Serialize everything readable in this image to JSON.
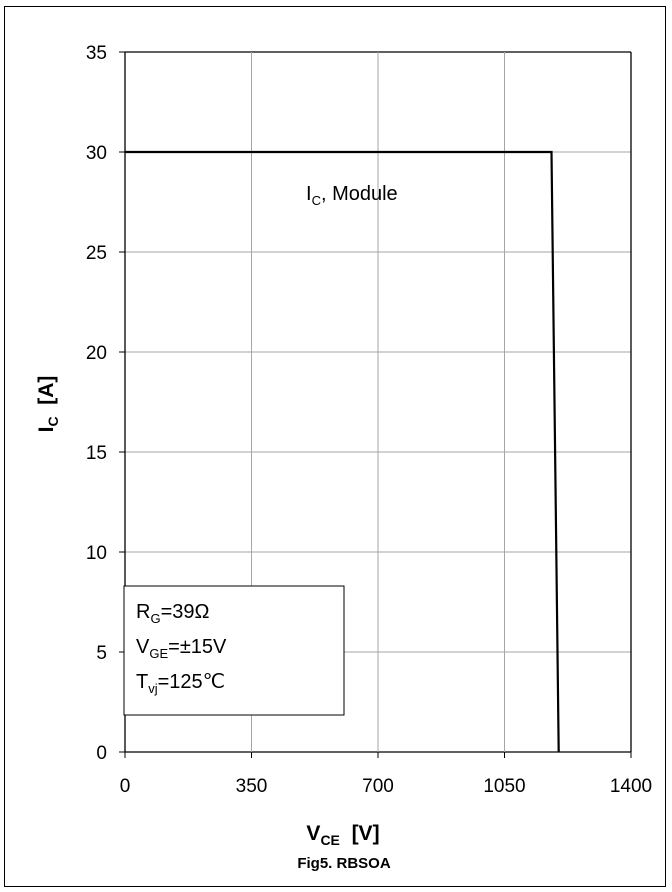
{
  "chart_data": {
    "type": "line",
    "title": "",
    "caption": "Fig5. RBSOA",
    "xlabel": {
      "main": "V",
      "sub": "CE",
      "unit": "[V]"
    },
    "ylabel": {
      "main": "I",
      "sub": "C",
      "unit": "[A]"
    },
    "xlim": [
      0,
      1400
    ],
    "ylim": [
      0,
      35
    ],
    "x_ticks": [
      "0",
      "350",
      "700",
      "1050",
      "1400"
    ],
    "y_ticks": [
      "0",
      "5",
      "10",
      "15",
      "20",
      "25",
      "30",
      "35"
    ],
    "grid": true,
    "series": [
      {
        "name": "IC, Module",
        "x": [
          0,
          1180,
          1200
        ],
        "y": [
          30,
          30,
          0
        ]
      }
    ],
    "series_label": {
      "main": "I",
      "sub": "C",
      "rest": ", Module"
    },
    "conditions": [
      {
        "main": "R",
        "sub": "G",
        "rest": "=39Ω"
      },
      {
        "main": "V",
        "sub": "GE",
        "rest": "=±15V"
      },
      {
        "main": "T",
        "sub": "vj",
        "rest": "=125℃"
      }
    ],
    "colors": {
      "line": "#000000",
      "grid": "#a6a6a6"
    }
  }
}
